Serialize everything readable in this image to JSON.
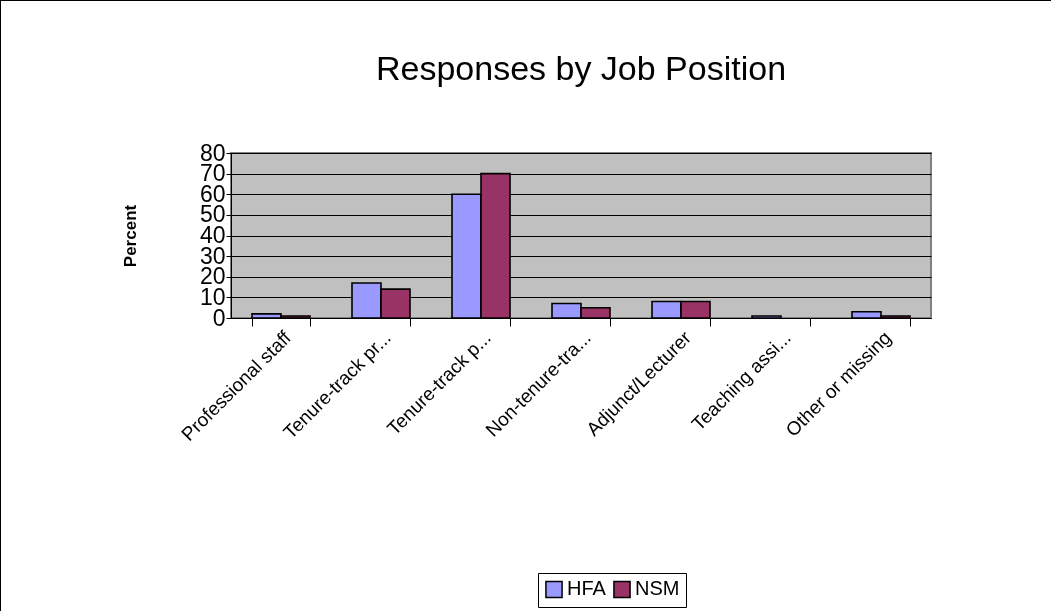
{
  "chart_data": {
    "type": "bar",
    "title": "Responses by Job Position",
    "ylabel": "Percent",
    "categories": [
      "Professional staff",
      "Tenure-track pr...",
      "Tenure-track p...",
      "Non-tenure-tra...",
      "Adjunct/Lecturer",
      "Teaching assi...",
      "Other or missing"
    ],
    "series": [
      {
        "name": "HFA",
        "color": "#9999ff",
        "values": [
          2,
          17,
          60,
          7,
          8,
          1,
          3
        ]
      },
      {
        "name": "NSM",
        "color": "#993366",
        "values": [
          1,
          14,
          70,
          5,
          8,
          null,
          1
        ]
      }
    ],
    "ylim": [
      0,
      80
    ],
    "yticks": [
      0,
      10,
      20,
      30,
      40,
      50,
      60,
      70,
      80
    ],
    "grid": "y",
    "legend": "bottom"
  }
}
